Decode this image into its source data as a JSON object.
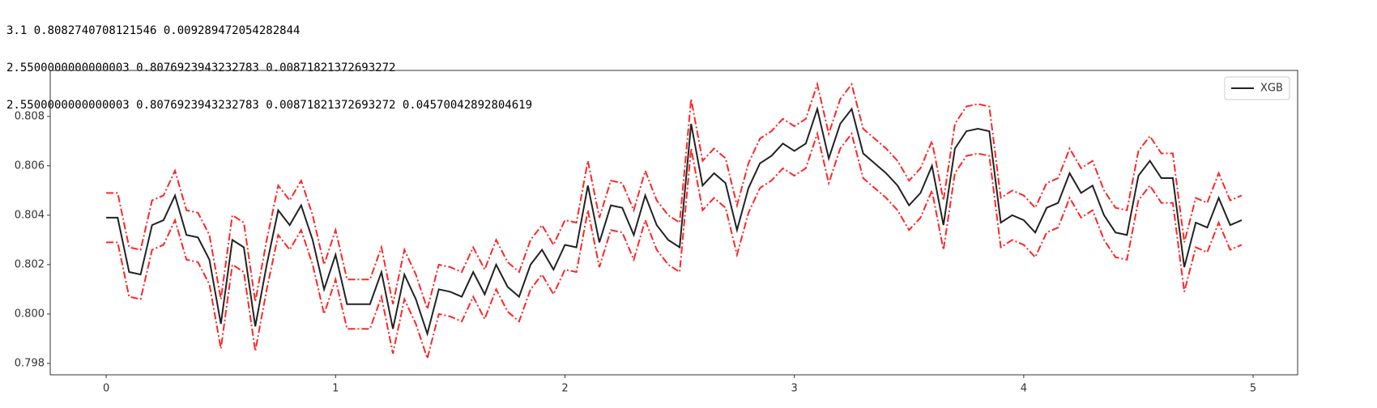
{
  "output_lines": [
    "3.1 0.8082740708121546 0.009289472054282844",
    "2.5500000000000003 0.8076923943232783 0.00871821372693272",
    "2.5500000000000003 0.8076923943232783 0.00871821372693272 0.04570042892804619"
  ],
  "chart_data": {
    "type": "line",
    "x": [
      0,
      0.05,
      0.1,
      0.15,
      0.2,
      0.25,
      0.3,
      0.35,
      0.4,
      0.45,
      0.5,
      0.55,
      0.6,
      0.65,
      0.7,
      0.75,
      0.8,
      0.85,
      0.9,
      0.95,
      1,
      1.05,
      1.1,
      1.15,
      1.2,
      1.25,
      1.3,
      1.35,
      1.4,
      1.45,
      1.5,
      1.55,
      1.6,
      1.65,
      1.7,
      1.75,
      1.8,
      1.85,
      1.9,
      1.95,
      2,
      2.05,
      2.1,
      2.15,
      2.2,
      2.25,
      2.3,
      2.35,
      2.4,
      2.45,
      2.5,
      2.55,
      2.6,
      2.65,
      2.7,
      2.75,
      2.8,
      2.85,
      2.9,
      2.95,
      3,
      3.05,
      3.1,
      3.15,
      3.2,
      3.25,
      3.3,
      3.35,
      3.4,
      3.45,
      3.5,
      3.55,
      3.6,
      3.65,
      3.7,
      3.75,
      3.8,
      3.85,
      3.9,
      3.95,
      4,
      4.05,
      4.1,
      4.15,
      4.2,
      4.25,
      4.3,
      4.35,
      4.4,
      4.45,
      4.5,
      4.55,
      4.6,
      4.65,
      4.7,
      4.75,
      4.8,
      4.85,
      4.9,
      4.95
    ],
    "series": [
      {
        "name": "XGB",
        "color": "#222222",
        "style": "solid",
        "values": [
          0.8039,
          0.8039,
          0.8017,
          0.8016,
          0.8036,
          0.8038,
          0.8048,
          0.8032,
          0.8031,
          0.8022,
          0.7996,
          0.803,
          0.8027,
          0.7995,
          0.802,
          0.8042,
          0.8036,
          0.8044,
          0.803,
          0.801,
          0.8024,
          0.8004,
          0.8004,
          0.8004,
          0.8017,
          0.7994,
          0.8016,
          0.8006,
          0.7992,
          0.801,
          0.8009,
          0.8007,
          0.8017,
          0.8008,
          0.802,
          0.8011,
          0.8007,
          0.802,
          0.8026,
          0.8018,
          0.8028,
          0.8027,
          0.8052,
          0.8029,
          0.8044,
          0.8043,
          0.8032,
          0.8048,
          0.8036,
          0.803,
          0.8027,
          0.8077,
          0.8052,
          0.8057,
          0.8053,
          0.8034,
          0.8051,
          0.8061,
          0.8064,
          0.8069,
          0.8066,
          0.8069,
          0.8083,
          0.8063,
          0.8077,
          0.8083,
          0.8065,
          0.8061,
          0.8057,
          0.8052,
          0.8044,
          0.8049,
          0.806,
          0.8036,
          0.8067,
          0.8074,
          0.8075,
          0.8074,
          0.8037,
          0.804,
          0.8038,
          0.8033,
          0.8043,
          0.8045,
          0.8057,
          0.8049,
          0.8052,
          0.804,
          0.8033,
          0.8032,
          0.8056,
          0.8062,
          0.8055,
          0.8055,
          0.8019,
          0.8037,
          0.8035,
          0.8047,
          0.8036,
          0.8038
        ]
      },
      {
        "color": "#ff0000",
        "style": "dashdot",
        "values": [
          0.8049,
          0.8049,
          0.8027,
          0.8026,
          0.8046,
          0.8048,
          0.8058,
          0.8042,
          0.8041,
          0.8032,
          0.8006,
          0.804,
          0.8037,
          0.8005,
          0.803,
          0.8052,
          0.8046,
          0.8054,
          0.804,
          0.802,
          0.8034,
          0.8014,
          0.8014,
          0.8014,
          0.8027,
          0.8004,
          0.8026,
          0.8016,
          0.8002,
          0.802,
          0.8019,
          0.8017,
          0.8027,
          0.8018,
          0.803,
          0.8021,
          0.8017,
          0.803,
          0.8036,
          0.8028,
          0.8038,
          0.8037,
          0.8062,
          0.8039,
          0.8054,
          0.8053,
          0.8042,
          0.8058,
          0.8046,
          0.804,
          0.8037,
          0.8087,
          0.8062,
          0.8067,
          0.8063,
          0.8044,
          0.8061,
          0.8071,
          0.8074,
          0.8079,
          0.8076,
          0.8079,
          0.8093,
          0.8073,
          0.8087,
          0.8093,
          0.8075,
          0.8071,
          0.8067,
          0.8062,
          0.8054,
          0.8059,
          0.807,
          0.8046,
          0.8077,
          0.8084,
          0.8085,
          0.8084,
          0.8047,
          0.805,
          0.8048,
          0.8043,
          0.8053,
          0.8055,
          0.8067,
          0.8059,
          0.8062,
          0.805,
          0.8043,
          0.8042,
          0.8066,
          0.8072,
          0.8065,
          0.8065,
          0.8029,
          0.8047,
          0.8045,
          0.8057,
          0.8046,
          0.8048
        ]
      },
      {
        "color": "#ff0000",
        "style": "dashdot",
        "values": [
          0.8029,
          0.8029,
          0.8007,
          0.8006,
          0.8026,
          0.8028,
          0.8038,
          0.8022,
          0.8021,
          0.8012,
          0.7986,
          0.802,
          0.8017,
          0.7985,
          0.801,
          0.8032,
          0.8026,
          0.8034,
          0.802,
          0.8,
          0.8014,
          0.7994,
          0.7994,
          0.7994,
          0.8007,
          0.7984,
          0.8006,
          0.7996,
          0.7982,
          0.8,
          0.7999,
          0.7997,
          0.8007,
          0.7998,
          0.801,
          0.8001,
          0.7997,
          0.801,
          0.8016,
          0.8008,
          0.8018,
          0.8017,
          0.8042,
          0.8019,
          0.8034,
          0.8033,
          0.8022,
          0.8038,
          0.8026,
          0.802,
          0.8017,
          0.8067,
          0.8042,
          0.8047,
          0.8043,
          0.8024,
          0.8041,
          0.8051,
          0.8054,
          0.8059,
          0.8056,
          0.8059,
          0.8073,
          0.8053,
          0.8067,
          0.8073,
          0.8055,
          0.8051,
          0.8047,
          0.8042,
          0.8034,
          0.8039,
          0.805,
          0.8026,
          0.8057,
          0.8064,
          0.8065,
          0.8064,
          0.8027,
          0.803,
          0.8028,
          0.8023,
          0.8033,
          0.8035,
          0.8047,
          0.8039,
          0.8042,
          0.803,
          0.8023,
          0.8022,
          0.8046,
          0.8052,
          0.8045,
          0.8045,
          0.8009,
          0.8027,
          0.8025,
          0.8037,
          0.8026,
          0.8028
        ]
      }
    ],
    "xlim": [
      -0.244,
      5.194
    ],
    "ylim": [
      0.79754,
      0.80986
    ],
    "xticks": [
      0,
      1,
      2,
      3,
      4,
      5
    ],
    "yticks": [
      0.798,
      {
        "value": 0.8,
        "label": "0.800"
      },
      0.802,
      0.804,
      0.806,
      0.808
    ],
    "legend": "upper right"
  }
}
